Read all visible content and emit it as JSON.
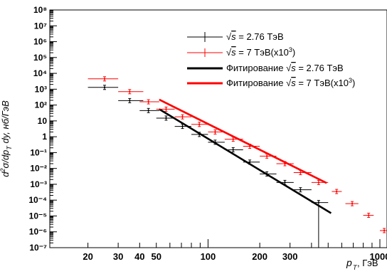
{
  "chart_data": {
    "type": "scatter",
    "x_scale": "log",
    "y_scale": "log",
    "xlim": [
      12,
      1100
    ],
    "ylim": [
      1e-07,
      100000000.0
    ],
    "xlabel_main": "p",
    "xlabel_sub": "T",
    "xlabel_unit": ", ГэВ",
    "ylabel": "d²σ/dp_T dy, нб/ГэВ",
    "x_ticks": [
      {
        "value": 20,
        "label": "20"
      },
      {
        "value": 30,
        "label": "30"
      },
      {
        "value": 40,
        "label": "40"
      },
      {
        "value": 50,
        "label": "50"
      },
      {
        "value": 100,
        "label": "100"
      },
      {
        "value": 200,
        "label": "200"
      },
      {
        "value": 300,
        "label": "300"
      },
      {
        "value": 1000,
        "label": "1000"
      }
    ],
    "y_ticks": [
      {
        "exp": 8,
        "label": "10⁸"
      },
      {
        "exp": 7,
        "label": "10⁷"
      },
      {
        "exp": 6,
        "label": "10⁶"
      },
      {
        "exp": 5,
        "label": "10⁵"
      },
      {
        "exp": 4,
        "label": "10⁴"
      },
      {
        "exp": 3,
        "label": "10³"
      },
      {
        "exp": 2,
        "label": "10²"
      },
      {
        "exp": 1,
        "label": "10"
      },
      {
        "exp": 0,
        "label": "1"
      },
      {
        "exp": -1,
        "label": "10⁻¹"
      },
      {
        "exp": -2,
        "label": "10⁻²"
      },
      {
        "exp": -3,
        "label": "10⁻³"
      },
      {
        "exp": -4,
        "label": "10⁻⁴"
      },
      {
        "exp": -5,
        "label": "10⁻⁵"
      },
      {
        "exp": -6,
        "label": "10⁻⁶"
      },
      {
        "exp": -7,
        "label": "10⁻⁷"
      }
    ],
    "legend_position": "top-right",
    "series": [
      {
        "name": "√s = 2.76 ТэВ",
        "color": "#000000",
        "points": [
          {
            "x": 25,
            "y": 1300,
            "xlo": 20,
            "xhi": 30
          },
          {
            "x": 35,
            "y": 190,
            "xlo": 30,
            "xhi": 42
          },
          {
            "x": 45,
            "y": 45,
            "xlo": 40,
            "xhi": 52
          },
          {
            "x": 57,
            "y": 15,
            "xlo": 50,
            "xhi": 64
          },
          {
            "x": 71,
            "y": 4.5,
            "xlo": 64,
            "xhi": 80
          },
          {
            "x": 89,
            "y": 1.4,
            "xlo": 80,
            "xhi": 100
          },
          {
            "x": 110,
            "y": 0.45,
            "xlo": 100,
            "xhi": 125
          },
          {
            "x": 140,
            "y": 0.15,
            "xlo": 125,
            "xhi": 160
          },
          {
            "x": 175,
            "y": 0.025,
            "xlo": 160,
            "xhi": 200
          },
          {
            "x": 220,
            "y": 0.0045,
            "xlo": 200,
            "xhi": 250
          },
          {
            "x": 280,
            "y": 0.0013,
            "xlo": 250,
            "xhi": 315
          },
          {
            "x": 345,
            "y": 0.00045,
            "xlo": 315,
            "xhi": 400
          },
          {
            "x": 440,
            "y": 7e-05,
            "xlo": 400,
            "xhi": 500,
            "ylo": 1e-07
          }
        ]
      },
      {
        "name": "√s = 7 ТэВ(x10³)",
        "color": "#ff0000",
        "points": [
          {
            "x": 25,
            "y": 4500,
            "xlo": 20,
            "xhi": 30
          },
          {
            "x": 35,
            "y": 700,
            "xlo": 30,
            "xhi": 42
          },
          {
            "x": 45,
            "y": 160,
            "xlo": 40,
            "xhi": 52
          },
          {
            "x": 57,
            "y": 55,
            "xlo": 50,
            "xhi": 64
          },
          {
            "x": 71,
            "y": 18,
            "xlo": 64,
            "xhi": 80
          },
          {
            "x": 89,
            "y": 6,
            "xlo": 80,
            "xhi": 100
          },
          {
            "x": 110,
            "y": 2,
            "xlo": 100,
            "xhi": 125
          },
          {
            "x": 140,
            "y": 0.7,
            "xlo": 125,
            "xhi": 160
          },
          {
            "x": 175,
            "y": 0.25,
            "xlo": 160,
            "xhi": 200
          },
          {
            "x": 220,
            "y": 0.06,
            "xlo": 200,
            "xhi": 250
          },
          {
            "x": 280,
            "y": 0.02,
            "xlo": 250,
            "xhi": 315
          },
          {
            "x": 345,
            "y": 0.0055,
            "xlo": 315,
            "xhi": 400
          },
          {
            "x": 440,
            "y": 0.0013,
            "xlo": 400,
            "xhi": 500
          },
          {
            "x": 560,
            "y": 0.00035,
            "xlo": 525,
            "xhi": 600
          },
          {
            "x": 690,
            "y": 6e-05,
            "xlo": 630,
            "xhi": 750
          },
          {
            "x": 860,
            "y": 1.1e-05,
            "xlo": 800,
            "xhi": 920
          },
          {
            "x": 1060,
            "y": 1.2e-06,
            "xlo": 1000,
            "xhi": 1100
          }
        ]
      }
    ],
    "fits": [
      {
        "name": "Фитирование √s = 2.76 ТэВ",
        "color": "#000000",
        "x": [
          52,
          520
        ],
        "y": [
          55,
          1.5e-05
        ]
      },
      {
        "name": "Фитирование √s = 7 ТэВ(x10³)",
        "color": "#ff0000",
        "x": [
          52,
          490
        ],
        "y": [
          220,
          0.0012
        ]
      }
    ]
  },
  "legend": {
    "entry1_prefix": "√",
    "entry1_s": "s",
    "entry1_rest": " = 2.76 ТэВ",
    "entry2_prefix": "√",
    "entry2_s": "s",
    "entry2_rest": " = 7 ТэВ(x10",
    "entry2_exp": "3",
    "entry2_close": ")",
    "entry3_text": "Фитирование ",
    "entry3_prefix": "√",
    "entry3_s": "s",
    "entry3_rest": " = 2.76 ТэВ",
    "entry4_text": "Фитирование ",
    "entry4_prefix": "√",
    "entry4_s": "s",
    "entry4_rest": " = 7 ТэВ(x10",
    "entry4_exp": "3",
    "entry4_close": ")"
  }
}
